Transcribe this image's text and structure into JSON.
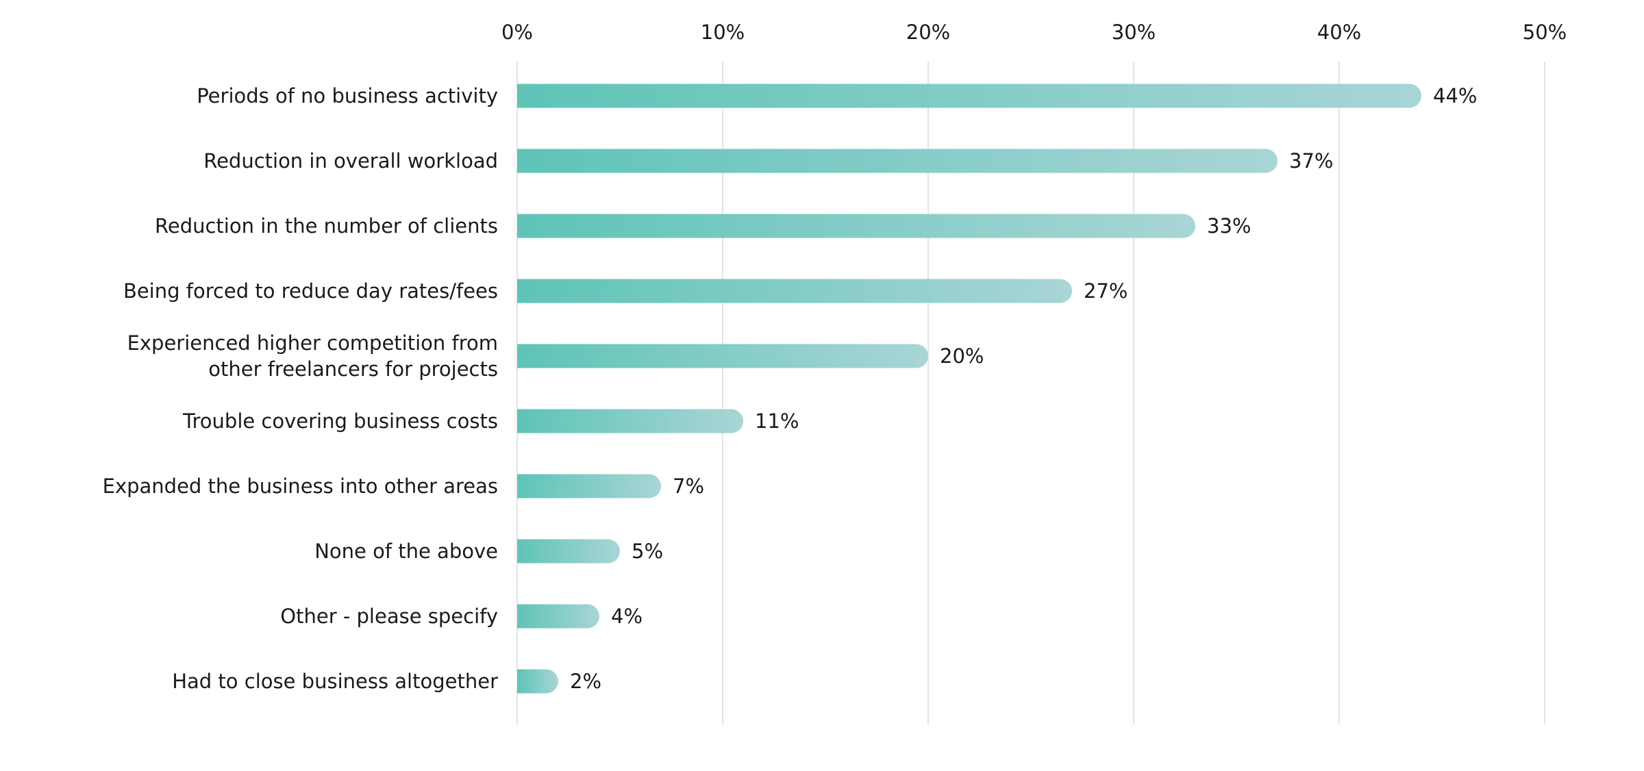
{
  "chart_data": {
    "type": "bar",
    "orientation": "horizontal",
    "categories": [
      "Periods of no business activity",
      "Reduction in overall workload",
      "Reduction in the number of clients",
      "Being forced to reduce day rates/fees",
      "Experienced higher competition from other freelancers for projects",
      "Trouble covering business costs",
      "Expanded the business into other areas",
      "None of the above",
      "Other - please specify",
      "Had to close business altogether"
    ],
    "category_lines": [
      [
        "Periods of no business activity"
      ],
      [
        "Reduction in overall workload"
      ],
      [
        "Reduction in the number of clients"
      ],
      [
        "Being forced to reduce day rates/fees"
      ],
      [
        "Experienced higher competition from",
        "other freelancers for projects"
      ],
      [
        "Trouble covering business costs"
      ],
      [
        "Expanded the business into other areas"
      ],
      [
        "None of the above"
      ],
      [
        "Other - please specify"
      ],
      [
        "Had to close business altogether"
      ]
    ],
    "values": [
      44,
      37,
      33,
      27,
      20,
      11,
      7,
      5,
      4,
      2
    ],
    "data_labels": [
      "44%",
      "37%",
      "33%",
      "27%",
      "20%",
      "11%",
      "7%",
      "5%",
      "4%",
      "2%"
    ],
    "xlim": [
      0,
      50
    ],
    "xticks": [
      0,
      10,
      20,
      30,
      40,
      50
    ],
    "xtick_labels": [
      "0%",
      "10%",
      "20%",
      "30%",
      "40%",
      "50%"
    ],
    "xaxis_position": "top",
    "grid": true,
    "title": "",
    "xlabel": "",
    "ylabel": "",
    "colors": {
      "bar_start": "#5ec4b7",
      "bar_end": "#a9d5d6",
      "grid": "#e3e3e3"
    }
  }
}
